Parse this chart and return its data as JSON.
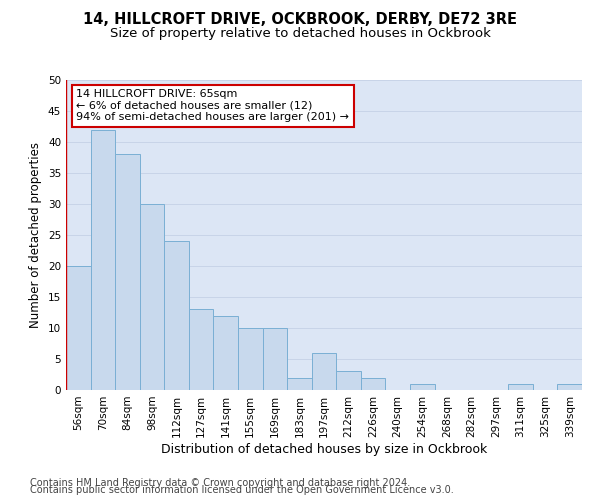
{
  "title1": "14, HILLCROFT DRIVE, OCKBROOK, DERBY, DE72 3RE",
  "title2": "Size of property relative to detached houses in Ockbrook",
  "xlabel": "Distribution of detached houses by size in Ockbrook",
  "ylabel": "Number of detached properties",
  "categories": [
    "56sqm",
    "70sqm",
    "84sqm",
    "98sqm",
    "112sqm",
    "127sqm",
    "141sqm",
    "155sqm",
    "169sqm",
    "183sqm",
    "197sqm",
    "212sqm",
    "226sqm",
    "240sqm",
    "254sqm",
    "268sqm",
    "282sqm",
    "297sqm",
    "311sqm",
    "325sqm",
    "339sqm"
  ],
  "values": [
    20,
    42,
    38,
    30,
    24,
    13,
    12,
    10,
    10,
    2,
    6,
    3,
    2,
    0,
    1,
    0,
    0,
    0,
    1,
    0,
    1
  ],
  "bar_color": "#c8d9ed",
  "bar_edge_color": "#7aafd4",
  "highlight_line_color": "#cc0000",
  "annotation_text": "14 HILLCROFT DRIVE: 65sqm\n← 6% of detached houses are smaller (12)\n94% of semi-detached houses are larger (201) →",
  "annotation_box_color": "#ffffff",
  "annotation_box_edge_color": "#cc0000",
  "ylim": [
    0,
    50
  ],
  "yticks": [
    0,
    5,
    10,
    15,
    20,
    25,
    30,
    35,
    40,
    45,
    50
  ],
  "grid_color": "#c8d4e8",
  "bg_color": "#dce6f5",
  "footer1": "Contains HM Land Registry data © Crown copyright and database right 2024.",
  "footer2": "Contains public sector information licensed under the Open Government Licence v3.0.",
  "title1_fontsize": 10.5,
  "title2_fontsize": 9.5,
  "xlabel_fontsize": 9,
  "ylabel_fontsize": 8.5,
  "tick_fontsize": 7.5,
  "annotation_fontsize": 8,
  "footer_fontsize": 7
}
